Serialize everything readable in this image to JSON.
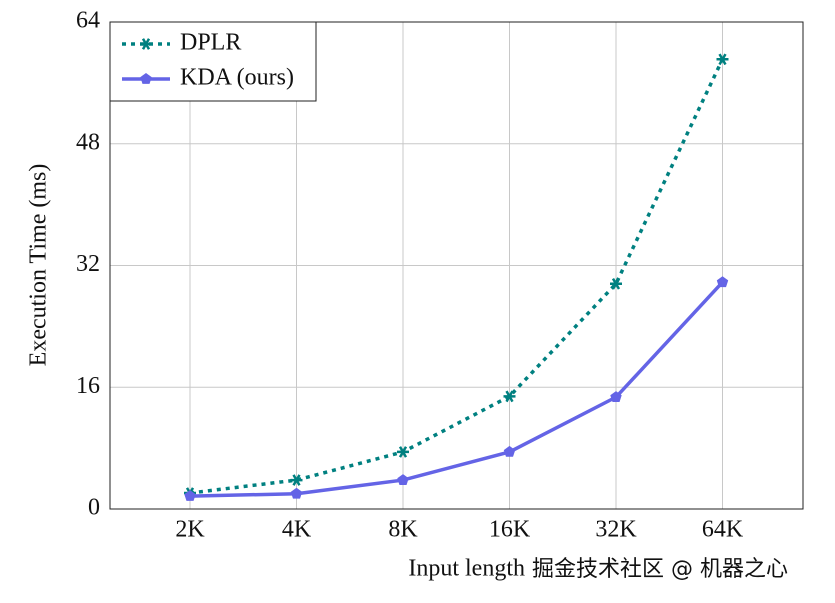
{
  "chart_data": {
    "type": "line",
    "y_label": "Execution Time (ms)",
    "x_label": "Input length",
    "watermark": "掘金技术社区 @ 机器之心",
    "categories": [
      "2K",
      "4K",
      "8K",
      "16K",
      "32K",
      "64K"
    ],
    "series": [
      {
        "name": "DPLR",
        "color": "#008080",
        "values": [
          2.1,
          3.8,
          7.5,
          14.8,
          29.6,
          59.1
        ]
      },
      {
        "name": "KDA (ours)",
        "color": "#6464e6",
        "values": [
          1.7,
          2.0,
          3.8,
          7.5,
          14.7,
          29.8
        ]
      }
    ],
    "ylim": [
      0,
      64
    ],
    "yticks": [
      0,
      16,
      32,
      48,
      64
    ],
    "grid": true,
    "legend": "upper left"
  }
}
